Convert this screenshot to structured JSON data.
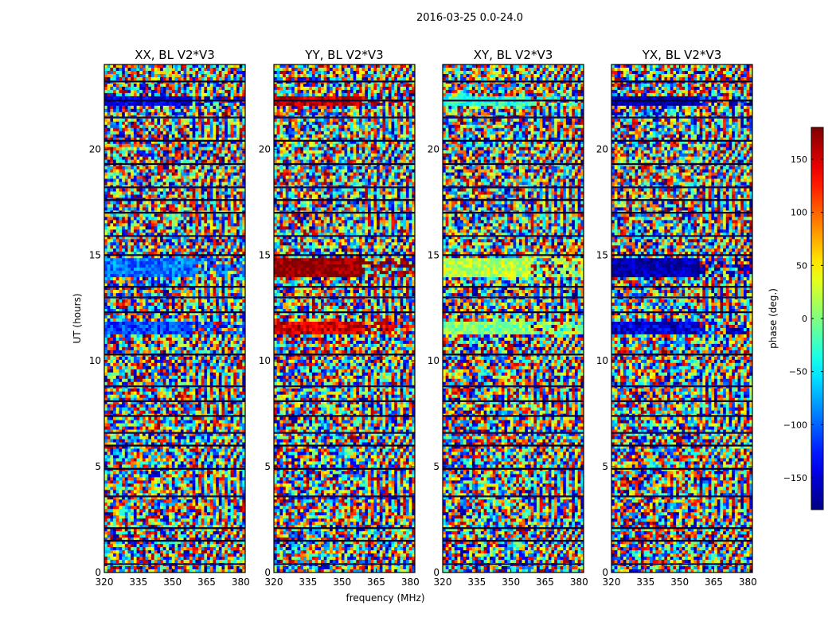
{
  "figure_title": "2016-03-25 0.0-24.0",
  "chart_data": {
    "type": "heatmap",
    "title": "2016-03-25 0.0-24.0",
    "xlabel": "frequency (MHz)",
    "ylabel": "UT (hours)",
    "xlim": [
      320,
      382
    ],
    "ylim": [
      0,
      24
    ],
    "x_ticks": [
      320,
      335,
      350,
      365,
      380
    ],
    "y_ticks": [
      0,
      5,
      10,
      15,
      20
    ],
    "panels": [
      {
        "name": "XX",
        "title": "XX, BL V2*V3",
        "bands": [
          {
            "t0": 11.2,
            "t1": 11.8,
            "phase": -110
          },
          {
            "t0": 13.9,
            "t1": 14.9,
            "phase": -95
          },
          {
            "t0": 22.0,
            "t1": 22.5,
            "phase": -150
          }
        ]
      },
      {
        "name": "YY",
        "title": "YY, BL V2*V3",
        "bands": [
          {
            "t0": 11.2,
            "t1": 11.8,
            "phase": 150
          },
          {
            "t0": 13.9,
            "t1": 14.9,
            "phase": 178
          },
          {
            "t0": 22.0,
            "t1": 22.5,
            "phase": 160
          }
        ]
      },
      {
        "name": "XY",
        "title": "XY, BL V2*V3",
        "bands": [
          {
            "t0": 11.2,
            "t1": 11.8,
            "phase": 0
          },
          {
            "t0": 13.9,
            "t1": 14.9,
            "phase": 20
          },
          {
            "t0": 22.0,
            "t1": 22.5,
            "phase": -30
          }
        ]
      },
      {
        "name": "YX",
        "title": "YX, BL V2*V3",
        "bands": [
          {
            "t0": 11.2,
            "t1": 11.8,
            "phase": -150
          },
          {
            "t0": 13.9,
            "t1": 14.9,
            "phase": -165
          },
          {
            "t0": 22.0,
            "t1": 22.5,
            "phase": -170
          }
        ]
      }
    ],
    "dark_lines_ut": [
      0.4,
      1.5,
      2.1,
      3.6,
      4.9,
      6.0,
      6.6,
      7.4,
      8.1,
      8.8,
      10.3,
      12.3,
      13.0,
      13.5,
      15.0,
      15.9,
      17.0,
      17.6,
      18.2,
      19.3,
      20.4,
      21.5,
      22.3,
      23.2
    ],
    "colorbar": {
      "label": "phase (deg.)",
      "range": [
        -180,
        180
      ],
      "ticks": [
        150,
        100,
        50,
        0,
        -50,
        -100,
        -150
      ],
      "tick_labels": [
        "150",
        "100",
        "50",
        "0",
        "−50",
        "−100",
        "−150"
      ],
      "colormap": "jet"
    }
  }
}
